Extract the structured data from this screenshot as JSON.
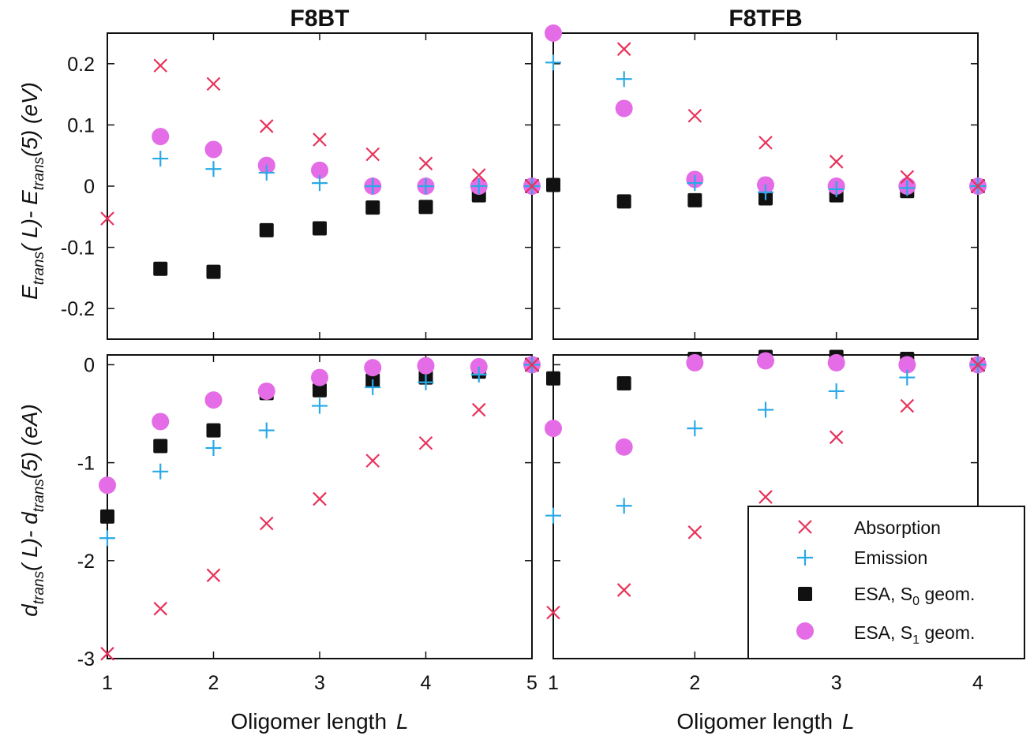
{
  "figure": {
    "y_label_top": {
      "main": "E",
      "sub1": "trans",
      "mid": "( L)- E",
      "sub2": "trans",
      "tail": "(5) (eV)"
    },
    "y_label_bottom": {
      "main": "d",
      "sub1": "trans",
      "mid": "( L)- d",
      "sub2": "trans",
      "tail": "(5) (eA)"
    },
    "x_label": "Oligomer length",
    "x_label_var": "L"
  },
  "colors": {
    "absorption": "#e8325a",
    "emission": "#29a9e6",
    "esa_s0": "#111111",
    "esa_s1": "#e46ce6"
  },
  "legend": {
    "items": [
      {
        "key": "absorption",
        "marker": "x",
        "text": "Absorption"
      },
      {
        "key": "emission",
        "marker": "plus",
        "text": "Emission"
      },
      {
        "key": "esa_s0",
        "marker": "square",
        "text": "ESA, S",
        "sub": "0",
        "tail": " geom."
      },
      {
        "key": "esa_s1",
        "marker": "circle",
        "text": "ESA, S",
        "sub": "1",
        "tail": " geom."
      }
    ]
  },
  "chart_data": [
    {
      "id": "f8bt-energy",
      "type": "scatter",
      "title": "F8BT",
      "xlabel": "Oligomer length L",
      "ylabel": "E_trans(L) - E_trans(5) (eV)",
      "xlim": [
        1,
        5
      ],
      "ylim": [
        -0.25,
        0.25
      ],
      "xticks": [
        1,
        2,
        3,
        4,
        5
      ],
      "yticks": [
        -0.2,
        -0.1,
        0,
        0.1,
        0.2
      ],
      "ytick_labels": [
        "-0.2",
        "-0.1",
        "0",
        "0.1",
        "0.2"
      ],
      "series": [
        {
          "name": "Absorption",
          "key": "absorption",
          "x": [
            1,
            1.5,
            2,
            2.5,
            3,
            3.5,
            4,
            4.5,
            5
          ],
          "y": [
            -0.053,
            0.197,
            0.167,
            0.098,
            0.076,
            0.052,
            0.037,
            0.018,
            0
          ]
        },
        {
          "name": "Emission",
          "key": "emission",
          "x": [
            1.5,
            2,
            2.5,
            3,
            3.5,
            4,
            4.5,
            5
          ],
          "y": [
            0.045,
            0.028,
            0.022,
            0.005,
            0,
            0,
            0,
            0
          ]
        },
        {
          "name": "ESA, S0 geom.",
          "key": "esa_s0",
          "x": [
            1.5,
            2,
            2.5,
            3,
            3.5,
            4,
            4.5,
            5
          ],
          "y": [
            -0.135,
            -0.14,
            -0.072,
            -0.069,
            -0.035,
            -0.034,
            -0.015,
            0
          ]
        },
        {
          "name": "ESA, S1 geom.",
          "key": "esa_s1",
          "x": [
            1.5,
            2,
            2.5,
            3,
            3.5,
            4,
            4.5,
            5
          ],
          "y": [
            0.081,
            0.06,
            0.034,
            0.026,
            0,
            0,
            0,
            0
          ]
        }
      ]
    },
    {
      "id": "f8tfb-energy",
      "type": "scatter",
      "title": "F8TFB",
      "xlabel": "Oligomer length L",
      "ylabel": "",
      "xlim": [
        1,
        4
      ],
      "ylim": [
        -0.25,
        0.25
      ],
      "xticks": [
        1,
        2,
        3,
        4
      ],
      "yticks": [
        -0.2,
        -0.1,
        0,
        0.1,
        0.2
      ],
      "ytick_labels": [],
      "series": [
        {
          "name": "Absorption",
          "key": "absorption",
          "x": [
            1.5,
            2,
            2.5,
            3,
            3.5,
            4
          ],
          "y": [
            0.224,
            0.115,
            0.071,
            0.04,
            0.015,
            0
          ]
        },
        {
          "name": "Emission",
          "key": "emission",
          "x": [
            1,
            1.5,
            2,
            2.5,
            3,
            3.5,
            4
          ],
          "y": [
            0.202,
            0.175,
            0.005,
            -0.01,
            -0.005,
            -0.003,
            0
          ]
        },
        {
          "name": "ESA, S0 geom.",
          "key": "esa_s0",
          "x": [
            1,
            1.5,
            2,
            2.5,
            3,
            3.5,
            4
          ],
          "y": [
            0.002,
            -0.025,
            -0.023,
            -0.02,
            -0.015,
            -0.008,
            0
          ]
        },
        {
          "name": "ESA, S1 geom.",
          "key": "esa_s1",
          "x": [
            1,
            1.5,
            2,
            2.5,
            3,
            3.5,
            4
          ],
          "y": [
            0.25,
            0.127,
            0.011,
            0.002,
            0,
            0,
            0
          ]
        }
      ]
    },
    {
      "id": "f8bt-dipole",
      "type": "scatter",
      "title": "",
      "xlabel": "Oligomer length L",
      "ylabel": "d_trans(L) - d_trans(5) (eA)",
      "xlim": [
        1,
        5
      ],
      "ylim": [
        -3,
        0.1
      ],
      "xticks": [
        1,
        2,
        3,
        4,
        5
      ],
      "xtick_labels": [
        "1",
        "2",
        "3",
        "4",
        "5"
      ],
      "yticks": [
        -3,
        -2,
        -1,
        0
      ],
      "ytick_labels": [
        "-3",
        "-2",
        "-1",
        "0"
      ],
      "series": [
        {
          "name": "Absorption",
          "key": "absorption",
          "x": [
            1,
            1.5,
            2,
            2.5,
            3,
            3.5,
            4,
            4.5,
            5
          ],
          "y": [
            -2.95,
            -2.49,
            -2.15,
            -1.62,
            -1.37,
            -0.98,
            -0.8,
            -0.46,
            0
          ]
        },
        {
          "name": "Emission",
          "key": "emission",
          "x": [
            1,
            1.5,
            2,
            2.5,
            3,
            3.5,
            4,
            4.5,
            5
          ],
          "y": [
            -1.77,
            -1.09,
            -0.85,
            -0.67,
            -0.42,
            -0.23,
            -0.18,
            -0.1,
            0
          ]
        },
        {
          "name": "ESA, S0 geom.",
          "key": "esa_s0",
          "x": [
            1,
            1.5,
            2,
            2.5,
            3,
            3.5,
            4,
            4.5,
            5
          ],
          "y": [
            -1.55,
            -0.83,
            -0.67,
            -0.29,
            -0.26,
            -0.16,
            -0.13,
            -0.07,
            0
          ]
        },
        {
          "name": "ESA, S1 geom.",
          "key": "esa_s1",
          "x": [
            1,
            1.5,
            2,
            2.5,
            3,
            3.5,
            4,
            4.5,
            5
          ],
          "y": [
            -1.23,
            -0.58,
            -0.36,
            -0.27,
            -0.13,
            -0.03,
            -0.01,
            -0.02,
            0
          ]
        }
      ]
    },
    {
      "id": "f8tfb-dipole",
      "type": "scatter",
      "title": "",
      "xlabel": "Oligomer length L",
      "ylabel": "",
      "xlim": [
        1,
        4
      ],
      "ylim": [
        -3,
        0.1
      ],
      "xticks": [
        1,
        2,
        3,
        4
      ],
      "xtick_labels": [
        "1",
        "2",
        "3",
        "4"
      ],
      "yticks": [
        -3,
        -2,
        -1,
        0
      ],
      "ytick_labels": [],
      "series": [
        {
          "name": "Absorption",
          "key": "absorption",
          "x": [
            1,
            1.5,
            2,
            2.5,
            3,
            3.5,
            4
          ],
          "y": [
            -2.53,
            -2.3,
            -1.71,
            -1.35,
            -0.74,
            -0.42,
            0
          ]
        },
        {
          "name": "Emission",
          "key": "emission",
          "x": [
            1,
            1.5,
            2,
            2.5,
            3,
            3.5,
            4
          ],
          "y": [
            -1.54,
            -1.44,
            -0.65,
            -0.46,
            -0.27,
            -0.13,
            0
          ]
        },
        {
          "name": "ESA, S0 geom.",
          "key": "esa_s0",
          "x": [
            1,
            1.5,
            2,
            2.5,
            3,
            3.5,
            4
          ],
          "y": [
            -0.14,
            -0.19,
            0.06,
            0.08,
            0.08,
            0.06,
            0
          ]
        },
        {
          "name": "ESA, S1 geom.",
          "key": "esa_s1",
          "x": [
            1,
            1.5,
            2,
            2.5,
            3,
            3.5,
            4
          ],
          "y": [
            -0.65,
            -0.84,
            0.02,
            0.04,
            0.02,
            0,
            0
          ]
        }
      ]
    }
  ]
}
